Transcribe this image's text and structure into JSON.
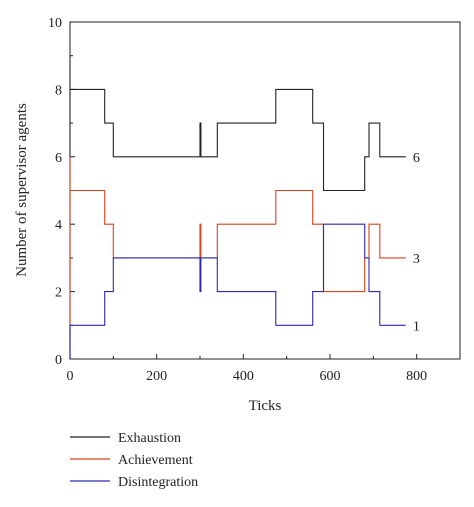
{
  "chart_data": {
    "type": "line",
    "xlabel": "Ticks",
    "ylabel": "Number of supervisor agents",
    "xlim": [
      0,
      900
    ],
    "ylim": [
      0,
      10
    ],
    "xticks": [
      0,
      200,
      400,
      600,
      800
    ],
    "yticks": [
      0,
      2,
      4,
      6,
      8,
      10
    ],
    "grid": false,
    "legend_position": "bottom-left-outside",
    "series": [
      {
        "name": "Exhaustion",
        "color": "#222222",
        "end_label": "6",
        "x": [
          0,
          0,
          0,
          80,
          80,
          100,
          100,
          300,
          300,
          302,
          302,
          340,
          340,
          475,
          475,
          560,
          560,
          585,
          585,
          680,
          680,
          690,
          690,
          715,
          715,
          775
        ],
        "y": [
          0,
          9,
          8,
          8,
          7,
          7,
          6,
          6,
          7,
          7,
          6,
          6,
          7,
          7,
          8,
          8,
          7,
          7,
          5,
          5,
          6,
          6,
          7,
          7,
          6,
          6
        ]
      },
      {
        "name": "Achievement",
        "color": "#d9431e",
        "end_label": "3",
        "x": [
          0,
          0,
          0,
          80,
          80,
          100,
          100,
          300,
          300,
          302,
          302,
          340,
          340,
          475,
          475,
          560,
          560,
          585,
          585,
          680,
          680,
          690,
          690,
          715,
          715,
          775
        ],
        "y": [
          0,
          6,
          5,
          5,
          4,
          4,
          3,
          3,
          4,
          4,
          3,
          3,
          4,
          4,
          5,
          5,
          4,
          4,
          2,
          2,
          3,
          3,
          4,
          4,
          3,
          3
        ]
      },
      {
        "name": "Disintegration",
        "color": "#2b2bb0",
        "end_label": "1",
        "x": [
          0,
          0,
          80,
          80,
          100,
          100,
          300,
          300,
          302,
          302,
          340,
          340,
          475,
          475,
          560,
          560,
          585,
          585,
          680,
          680,
          690,
          690,
          715,
          715,
          775
        ],
        "y": [
          0,
          1,
          1,
          2,
          2,
          3,
          3,
          2,
          2,
          3,
          3,
          2,
          2,
          1,
          1,
          2,
          2,
          4,
          4,
          3,
          3,
          2,
          2,
          1,
          1
        ]
      }
    ]
  }
}
